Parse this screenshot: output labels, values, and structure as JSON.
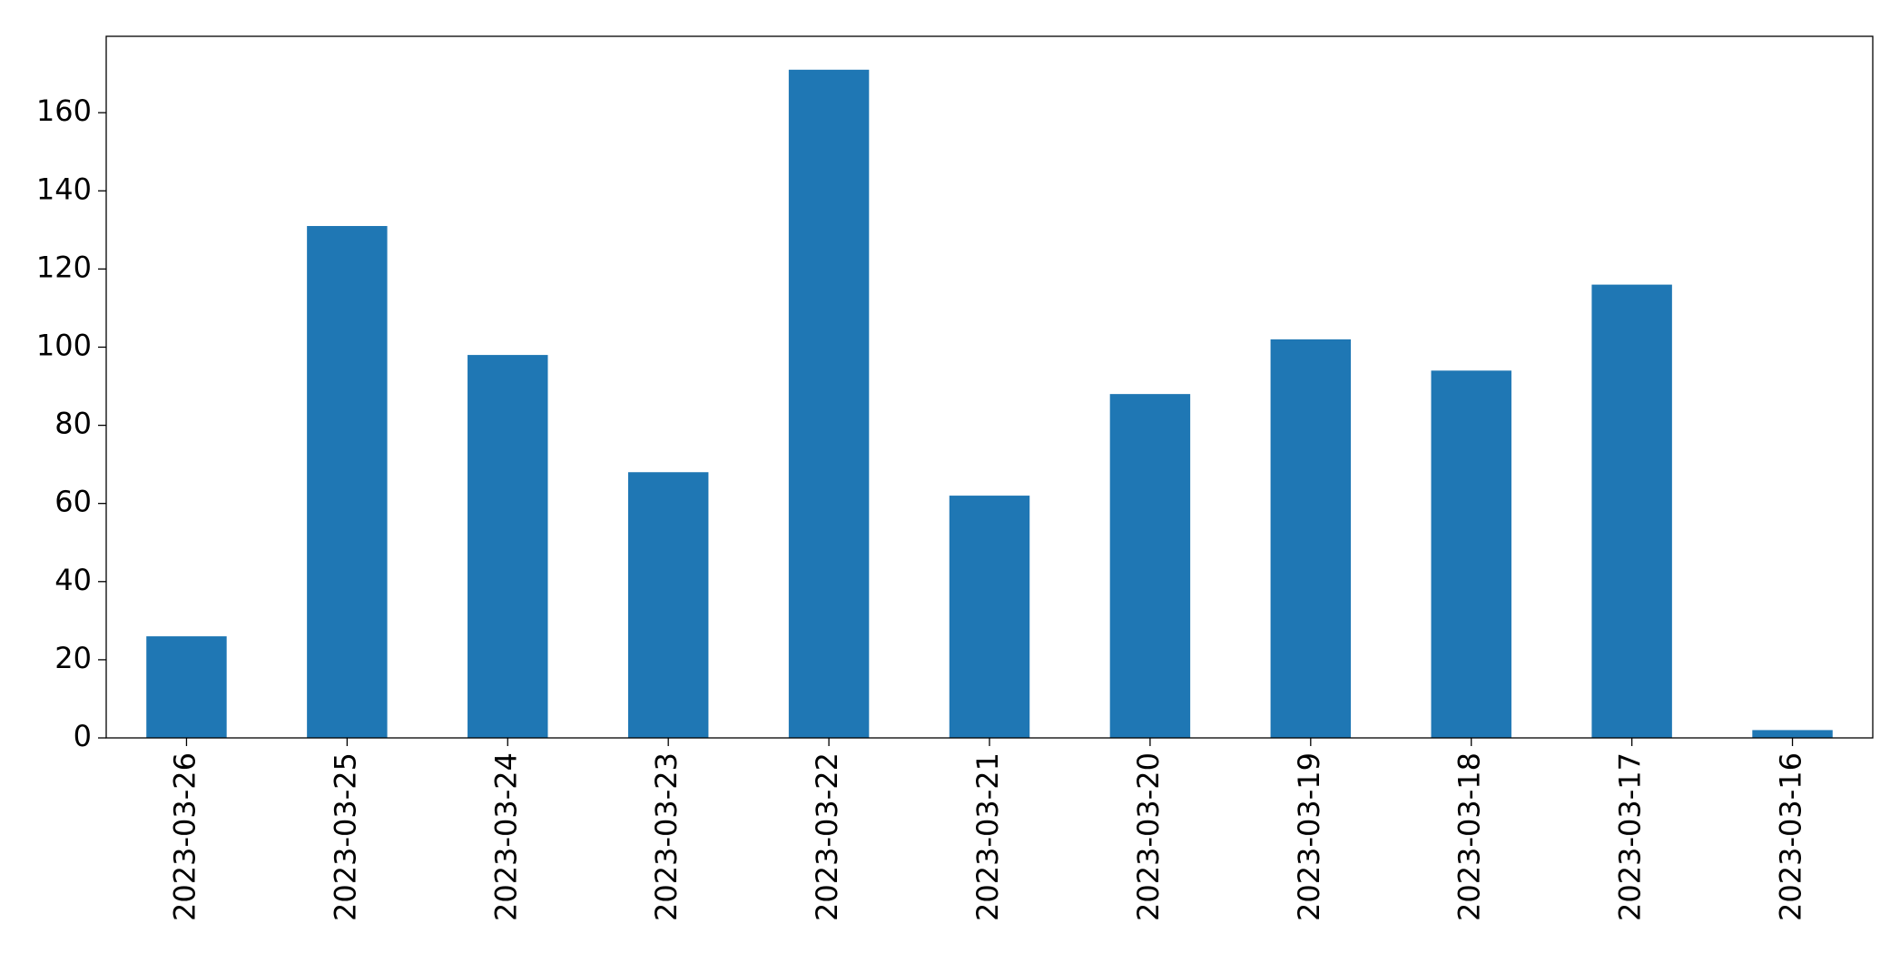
{
  "chart_data": {
    "type": "bar",
    "categories": [
      "2023-03-26",
      "2023-03-25",
      "2023-03-24",
      "2023-03-23",
      "2023-03-22",
      "2023-03-21",
      "2023-03-20",
      "2023-03-19",
      "2023-03-18",
      "2023-03-17",
      "2023-03-16"
    ],
    "values": [
      26,
      131,
      98,
      68,
      171,
      62,
      88,
      102,
      94,
      116,
      2
    ],
    "color": "#1f77b4",
    "ylim": [
      0,
      179.55
    ],
    "yticks": [
      0,
      20,
      40,
      60,
      80,
      100,
      120,
      140,
      160
    ],
    "grid": false
  }
}
